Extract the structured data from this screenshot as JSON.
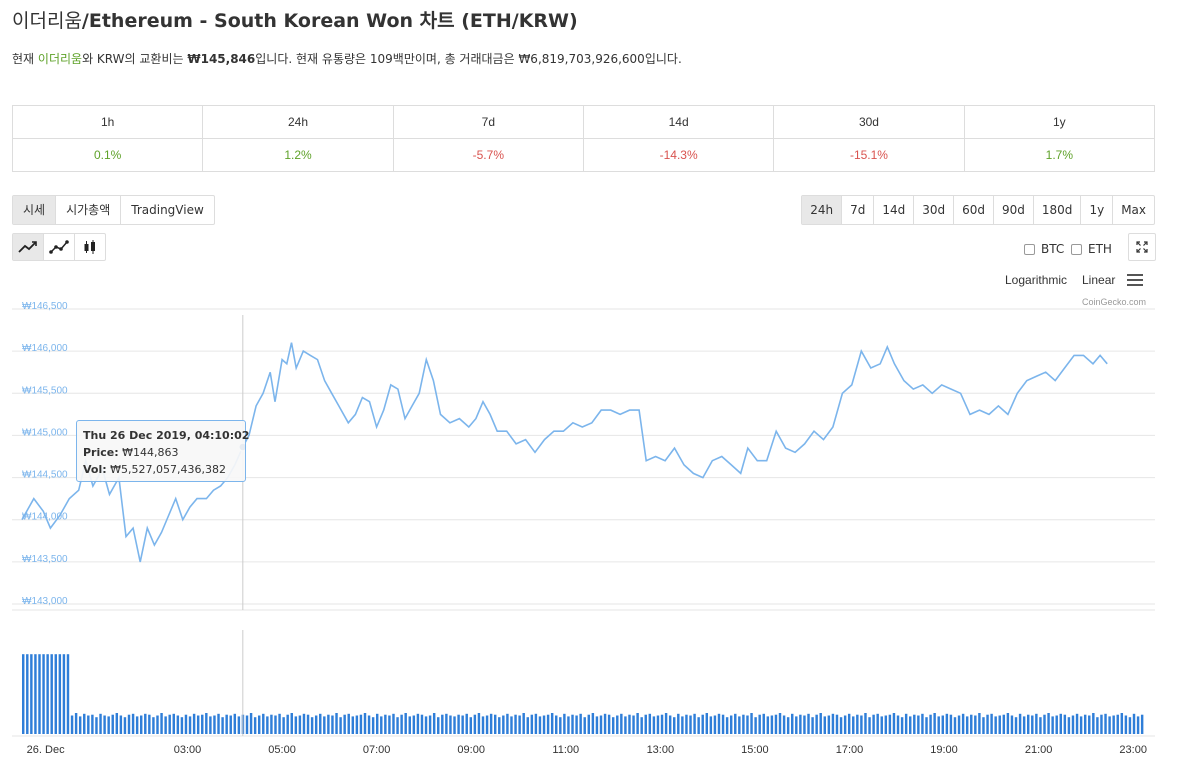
{
  "title": {
    "korean": "이더리움",
    "english": "/Ethereum - South Korean Won 차트 (ETH/KRW)"
  },
  "description": {
    "p1": "현재 ",
    "coin_link": "이더리움",
    "p2": "와 KRW의 교환비는 ",
    "price": "₩145,846",
    "p3": "입니다. 현재 유통량은 109백만이며, 총 거래대금은 ₩6,819,703,926,600입니다."
  },
  "performance": {
    "headers": [
      "1h",
      "24h",
      "7d",
      "14d",
      "30d",
      "1y"
    ],
    "values": [
      "0.1%",
      "1.2%",
      "-5.7%",
      "-14.3%",
      "-15.1%",
      "1.7%"
    ],
    "positive_color": "#5fa22a",
    "negative_color": "#d9534f"
  },
  "chart_tabs": [
    "시세",
    "시가총액",
    "TradingView"
  ],
  "range_buttons": [
    "24h",
    "7d",
    "14d",
    "30d",
    "60d",
    "90d",
    "180d",
    "1y",
    "Max"
  ],
  "chart_type_icons": [
    "line-chart-icon",
    "line-markers-chart-icon",
    "candlestick-chart-icon"
  ],
  "compare": {
    "btc": "BTC",
    "eth": "ETH"
  },
  "scale": {
    "log": "Logarithmic",
    "linear": "Linear"
  },
  "credit": "CoinGecko.com",
  "tooltip": {
    "date": "Thu 26 Dec 2019, 04:10:02",
    "price_label": "Price:",
    "price": "₩144,863",
    "vol_label": "Vol:",
    "vol": "₩5,527,057,436,382"
  },
  "colors": {
    "line": "#7cb5ec",
    "volume": "#2f7ed8",
    "marker": "#1f5f9f",
    "tick_label": "#7cb5ec"
  },
  "chart_data": {
    "type": "line",
    "title": "",
    "xlabel": "",
    "ylabel": "",
    "ylim": [
      143000,
      146500
    ],
    "xlim": [
      -0.5,
      23.25
    ],
    "y_ticks": [
      {
        "v": 146500,
        "label": "₩146,500"
      },
      {
        "v": 146000,
        "label": "₩146,000"
      },
      {
        "v": 145500,
        "label": "₩145,500"
      },
      {
        "v": 145000,
        "label": "₩145,000"
      },
      {
        "v": 144500,
        "label": "₩144,500"
      },
      {
        "v": 144000,
        "label": "₩144,000"
      },
      {
        "v": 143500,
        "label": "₩143,500"
      },
      {
        "v": 143000,
        "label": "₩143,000"
      }
    ],
    "x_ticks": [
      {
        "t": 0,
        "label": "26. Dec"
      },
      {
        "t": 3,
        "label": "03:00"
      },
      {
        "t": 5,
        "label": "05:00"
      },
      {
        "t": 7,
        "label": "07:00"
      },
      {
        "t": 9,
        "label": "09:00"
      },
      {
        "t": 11,
        "label": "11:00"
      },
      {
        "t": 13,
        "label": "13:00"
      },
      {
        "t": 15,
        "label": "15:00"
      },
      {
        "t": 17,
        "label": "17:00"
      },
      {
        "t": 19,
        "label": "19:00"
      },
      {
        "t": 21,
        "label": "21:00"
      },
      {
        "t": 23,
        "label": "23:00"
      }
    ],
    "series": [
      {
        "values": [
          [
            -0.5,
            144000
          ],
          [
            -0.25,
            144250
          ],
          [
            -0.05,
            144100
          ],
          [
            0.1,
            143900
          ],
          [
            0.3,
            144050
          ],
          [
            0.5,
            144250
          ],
          [
            0.7,
            144350
          ],
          [
            0.85,
            144700
          ],
          [
            1.0,
            144400
          ],
          [
            1.2,
            144600
          ],
          [
            1.35,
            144300
          ],
          [
            1.55,
            144500
          ],
          [
            1.7,
            143800
          ],
          [
            1.85,
            143900
          ],
          [
            2.0,
            143500
          ],
          [
            2.15,
            143900
          ],
          [
            2.3,
            143700
          ],
          [
            2.45,
            143850
          ],
          [
            2.6,
            144050
          ],
          [
            2.75,
            144250
          ],
          [
            2.9,
            144000
          ],
          [
            3.05,
            144150
          ],
          [
            3.2,
            144250
          ],
          [
            3.4,
            144250
          ],
          [
            3.55,
            144350
          ],
          [
            3.7,
            144400
          ],
          [
            3.85,
            144500
          ],
          [
            4.0,
            144650
          ],
          [
            4.17,
            144863
          ],
          [
            4.3,
            145000
          ],
          [
            4.45,
            145350
          ],
          [
            4.6,
            145500
          ],
          [
            4.75,
            145750
          ],
          [
            4.85,
            145400
          ],
          [
            5.0,
            145900
          ],
          [
            5.1,
            145850
          ],
          [
            5.2,
            146100
          ],
          [
            5.3,
            145800
          ],
          [
            5.45,
            146000
          ],
          [
            5.6,
            145950
          ],
          [
            5.75,
            145900
          ],
          [
            5.9,
            145650
          ],
          [
            6.05,
            145500
          ],
          [
            6.2,
            145350
          ],
          [
            6.4,
            145150
          ],
          [
            6.55,
            145250
          ],
          [
            6.7,
            145450
          ],
          [
            6.85,
            145400
          ],
          [
            7.0,
            145100
          ],
          [
            7.15,
            145300
          ],
          [
            7.3,
            145600
          ],
          [
            7.45,
            145550
          ],
          [
            7.6,
            145200
          ],
          [
            7.75,
            145350
          ],
          [
            7.9,
            145500
          ],
          [
            8.05,
            145900
          ],
          [
            8.2,
            145650
          ],
          [
            8.35,
            145250
          ],
          [
            8.55,
            145150
          ],
          [
            8.75,
            145200
          ],
          [
            8.95,
            145100
          ],
          [
            9.1,
            145200
          ],
          [
            9.25,
            145400
          ],
          [
            9.4,
            145250
          ],
          [
            9.55,
            145050
          ],
          [
            9.75,
            145050
          ],
          [
            9.95,
            144900
          ],
          [
            10.15,
            144950
          ],
          [
            10.35,
            144800
          ],
          [
            10.55,
            144950
          ],
          [
            10.75,
            145050
          ],
          [
            10.95,
            145050
          ],
          [
            11.15,
            145150
          ],
          [
            11.35,
            145100
          ],
          [
            11.55,
            145150
          ],
          [
            11.75,
            145300
          ],
          [
            11.95,
            145300
          ],
          [
            12.15,
            145250
          ],
          [
            12.35,
            145300
          ],
          [
            12.55,
            145300
          ],
          [
            12.7,
            144700
          ],
          [
            12.9,
            144750
          ],
          [
            13.1,
            144700
          ],
          [
            13.3,
            144850
          ],
          [
            13.5,
            144650
          ],
          [
            13.7,
            144550
          ],
          [
            13.9,
            144500
          ],
          [
            14.1,
            144700
          ],
          [
            14.3,
            144750
          ],
          [
            14.5,
            144650
          ],
          [
            14.7,
            144550
          ],
          [
            14.85,
            144850
          ],
          [
            15.05,
            144700
          ],
          [
            15.25,
            144700
          ],
          [
            15.45,
            145050
          ],
          [
            15.65,
            144850
          ],
          [
            15.85,
            144800
          ],
          [
            16.05,
            144900
          ],
          [
            16.25,
            145050
          ],
          [
            16.45,
            144950
          ],
          [
            16.65,
            145100
          ],
          [
            16.85,
            145500
          ],
          [
            17.05,
            145600
          ],
          [
            17.25,
            146000
          ],
          [
            17.45,
            145800
          ],
          [
            17.65,
            145850
          ],
          [
            17.8,
            146050
          ],
          [
            17.95,
            145850
          ],
          [
            18.15,
            145650
          ],
          [
            18.35,
            145550
          ],
          [
            18.55,
            145600
          ],
          [
            18.75,
            145500
          ],
          [
            18.95,
            145600
          ],
          [
            19.15,
            145550
          ],
          [
            19.35,
            145500
          ],
          [
            19.55,
            145250
          ],
          [
            19.75,
            145300
          ],
          [
            19.95,
            145250
          ],
          [
            20.15,
            145350
          ],
          [
            20.35,
            145250
          ],
          [
            20.55,
            145500
          ],
          [
            20.75,
            145650
          ],
          [
            20.95,
            145700
          ],
          [
            21.15,
            145750
          ],
          [
            21.35,
            145650
          ],
          [
            21.55,
            145800
          ],
          [
            21.75,
            145950
          ],
          [
            21.95,
            145950
          ],
          [
            22.15,
            145850
          ]
        ]
      }
    ],
    "volume_max_label": "",
    "volume": [
      0.95,
      0.95,
      0.95,
      0.95,
      0.95,
      0.95,
      0.95,
      0.95,
      0.95,
      0.95,
      0.95,
      0.95,
      0.22,
      0.25,
      0.21,
      0.24,
      0.22,
      0.23,
      0.2,
      0.24,
      0.22,
      0.21,
      0.23,
      0.25,
      0.22,
      0.2,
      0.23,
      0.24,
      0.21,
      0.22,
      0.24,
      0.23,
      0.2,
      0.22,
      0.25,
      0.21,
      0.23,
      0.24,
      0.22,
      0.2,
      0.23,
      0.21,
      0.24,
      0.22,
      0.23,
      0.25,
      0.21,
      0.22,
      0.24,
      0.2,
      0.23,
      0.22,
      0.24,
      0.21,
      0.23,
      0.22,
      0.25,
      0.2,
      0.22,
      0.24,
      0.21,
      0.23,
      0.22,
      0.24,
      0.2,
      0.23,
      0.25,
      0.21,
      0.22,
      0.24,
      0.23,
      0.2,
      0.22,
      0.24,
      0.21,
      0.23,
      0.22,
      0.25,
      0.2,
      0.23,
      0.24,
      0.21,
      0.22,
      0.23,
      0.25,
      0.22,
      0.2,
      0.24,
      0.21,
      0.23,
      0.22,
      0.24,
      0.2,
      0.23,
      0.25,
      0.21,
      0.22,
      0.24,
      0.23,
      0.21,
      0.22,
      0.25,
      0.2,
      0.23,
      0.24,
      0.22,
      0.21,
      0.23,
      0.22,
      0.24,
      0.2,
      0.23,
      0.25,
      0.21,
      0.22,
      0.24,
      0.23,
      0.2,
      0.22,
      0.24,
      0.21,
      0.23,
      0.22,
      0.25,
      0.2,
      0.23,
      0.24,
      0.21,
      0.22,
      0.23,
      0.25,
      0.22,
      0.2,
      0.24,
      0.21,
      0.23,
      0.22,
      0.24,
      0.2,
      0.23,
      0.25,
      0.21,
      0.22,
      0.24,
      0.23,
      0.2,
      0.22,
      0.24,
      0.21,
      0.23,
      0.22,
      0.25,
      0.2,
      0.23,
      0.24,
      0.21,
      0.22,
      0.23,
      0.25,
      0.22,
      0.2,
      0.24,
      0.21,
      0.23,
      0.22,
      0.24,
      0.2,
      0.23,
      0.25,
      0.21,
      0.22,
      0.24,
      0.23,
      0.2,
      0.22,
      0.24,
      0.21,
      0.23,
      0.22,
      0.25,
      0.2,
      0.23,
      0.24,
      0.21,
      0.22,
      0.23,
      0.25,
      0.22,
      0.2,
      0.24,
      0.21,
      0.23,
      0.22,
      0.24,
      0.2,
      0.23,
      0.25,
      0.21,
      0.22,
      0.24,
      0.23,
      0.2,
      0.22,
      0.24,
      0.21,
      0.23,
      0.22,
      0.25,
      0.2,
      0.23,
      0.24,
      0.21,
      0.22,
      0.23,
      0.25,
      0.22,
      0.2,
      0.24,
      0.21,
      0.23,
      0.22,
      0.24,
      0.2,
      0.23,
      0.25,
      0.21,
      0.22,
      0.24,
      0.23,
      0.2,
      0.22,
      0.24,
      0.21,
      0.23,
      0.22,
      0.25,
      0.2,
      0.23,
      0.24,
      0.21,
      0.22,
      0.23,
      0.25,
      0.22,
      0.2,
      0.24,
      0.21,
      0.23,
      0.22,
      0.24,
      0.2,
      0.23,
      0.25,
      0.21,
      0.22,
      0.24,
      0.23,
      0.2,
      0.22,
      0.24,
      0.21,
      0.23,
      0.22,
      0.25,
      0.2,
      0.23,
      0.24,
      0.21,
      0.22,
      0.23,
      0.25,
      0.22,
      0.2,
      0.24,
      0.21,
      0.23
    ],
    "hover_x": 4.17,
    "legend": "none",
    "grid": true
  }
}
